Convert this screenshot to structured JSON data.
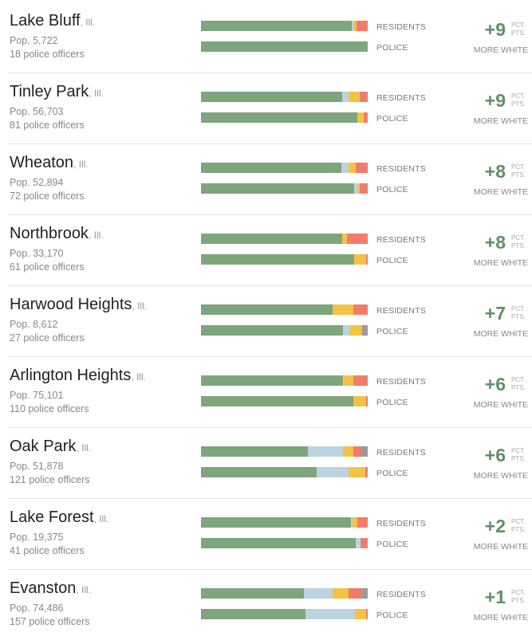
{
  "labels": {
    "residents": "RESIDENTS",
    "police": "POLICE",
    "unit_line1": "PCT.",
    "unit_line2": "PTS.",
    "caption": "MORE WHITE"
  },
  "colors": {
    "white": "#7fa57d",
    "hispanic": "#bcd4df",
    "black": "#f3c344",
    "asian": "#f07d6c",
    "other": "#9a9a9a",
    "difference_text": "#5e9067"
  },
  "chart_data": {
    "type": "bar",
    "categories": [
      "Lake Bluff",
      "Tinley Park",
      "Wheaton",
      "Northbrook",
      "Harwood Heights",
      "Arlington Heights",
      "Oak Park",
      "Lake Forest",
      "Evanston"
    ],
    "rows": [
      {
        "city": "Lake Bluff",
        "state": ", Ill.",
        "population": "Pop. 5,722",
        "officers": "18 police officers",
        "difference": "+9",
        "residents": [
          90.5,
          1.0,
          2.0,
          6.5,
          0.0
        ],
        "police": [
          100.0,
          0.0,
          0.0,
          0.0,
          0.0
        ]
      },
      {
        "city": "Tinley Park",
        "state": ", Ill.",
        "population": "Pop. 56,703",
        "officers": "81 police officers",
        "difference": "+9",
        "residents": [
          84.5,
          4.0,
          6.5,
          4.5,
          0.5
        ],
        "police": [
          94.0,
          0.0,
          3.5,
          2.5,
          0.0
        ]
      },
      {
        "city": "Wheaton",
        "state": ", Ill.",
        "population": "Pop. 52,894",
        "officers": "72 police officers",
        "difference": "+8",
        "residents": [
          84.0,
          4.5,
          4.5,
          6.5,
          0.5
        ],
        "police": [
          92.0,
          2.0,
          1.0,
          5.0,
          0.0
        ]
      },
      {
        "city": "Northbrook",
        "state": ", Ill.",
        "population": "Pop. 33,170",
        "officers": "61 police officers",
        "difference": "+8",
        "residents": [
          84.5,
          0.0,
          3.0,
          12.5,
          0.0
        ],
        "police": [
          92.0,
          0.0,
          7.0,
          1.0,
          0.0
        ]
      },
      {
        "city": "Harwood Heights",
        "state": ", Ill.",
        "population": "Pop. 8,612",
        "officers": "27 police officers",
        "difference": "+7",
        "residents": [
          79.0,
          0.0,
          12.5,
          8.5,
          0.0
        ],
        "police": [
          85.0,
          4.0,
          7.5,
          0.0,
          3.5
        ]
      },
      {
        "city": "Arlington Heights",
        "state": ", Ill.",
        "population": "Pop. 75,101",
        "officers": "110 police officers",
        "difference": "+6",
        "residents": [
          85.0,
          0.5,
          6.0,
          8.5,
          0.0
        ],
        "police": [
          91.5,
          0.0,
          7.5,
          1.0,
          0.0
        ]
      },
      {
        "city": "Oak Park",
        "state": ", Ill.",
        "population": "Pop. 51,878",
        "officers": "121 police officers",
        "difference": "+6",
        "residents": [
          64.0,
          21.0,
          6.5,
          4.5,
          4.0
        ],
        "police": [
          69.5,
          19.0,
          10.0,
          1.5,
          0.0
        ]
      },
      {
        "city": "Lake Forest",
        "state": ", Ill.",
        "population": "Pop. 19,375",
        "officers": "41 police officers",
        "difference": "+2",
        "residents": [
          90.0,
          1.0,
          3.0,
          6.0,
          0.0
        ],
        "police": [
          93.0,
          2.5,
          0.0,
          4.5,
          0.0
        ]
      },
      {
        "city": "Evanston",
        "state": ", Ill.",
        "population": "Pop. 74,486",
        "officers": "157 police officers",
        "difference": "+1",
        "residents": [
          61.5,
          17.5,
          9.5,
          8.0,
          3.5
        ],
        "police": [
          62.5,
          30.0,
          6.5,
          1.0,
          0.0
        ]
      }
    ]
  }
}
